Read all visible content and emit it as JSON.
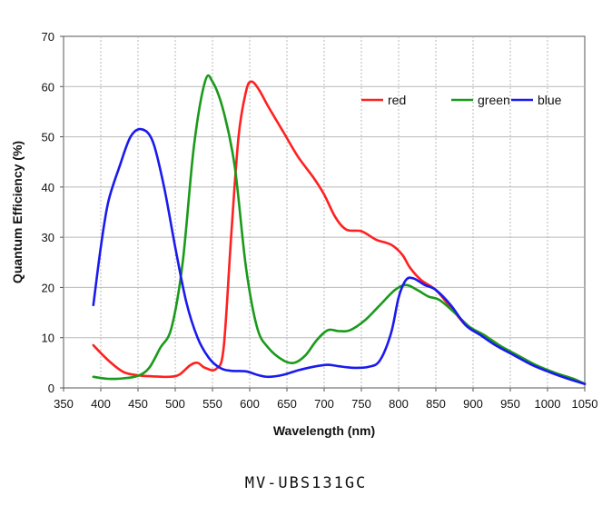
{
  "chart_data": {
    "type": "line",
    "xlabel": "Wavelength (nm)",
    "ylabel": "Quantum Efficiency (%)",
    "xlim": [
      350,
      1050
    ],
    "ylim": [
      0,
      70
    ],
    "x_ticks": [
      350,
      400,
      450,
      500,
      550,
      600,
      650,
      700,
      750,
      800,
      850,
      900,
      950,
      1000,
      1050
    ],
    "y_ticks": [
      0,
      10,
      20,
      30,
      40,
      50,
      60,
      70
    ],
    "grid": true,
    "legend_position": "top-right",
    "series": [
      {
        "name": "red",
        "color": "#ff2020",
        "points": [
          [
            390,
            8.5
          ],
          [
            410,
            5.5
          ],
          [
            430,
            3.2
          ],
          [
            450,
            2.5
          ],
          [
            470,
            2.3
          ],
          [
            490,
            2.2
          ],
          [
            505,
            2.6
          ],
          [
            520,
            4.5
          ],
          [
            530,
            5.0
          ],
          [
            540,
            4.0
          ],
          [
            555,
            3.8
          ],
          [
            565,
            8
          ],
          [
            575,
            30
          ],
          [
            585,
            50
          ],
          [
            595,
            59
          ],
          [
            602,
            61
          ],
          [
            612,
            59.5
          ],
          [
            625,
            56
          ],
          [
            645,
            51
          ],
          [
            665,
            46
          ],
          [
            685,
            42
          ],
          [
            700,
            38.5
          ],
          [
            715,
            34
          ],
          [
            730,
            31.5
          ],
          [
            750,
            31.2
          ],
          [
            770,
            29.5
          ],
          [
            790,
            28.5
          ],
          [
            805,
            26.5
          ],
          [
            815,
            24
          ],
          [
            830,
            21.5
          ],
          [
            850,
            19.5
          ],
          [
            870,
            16
          ],
          [
            890,
            12.5
          ],
          [
            905,
            11
          ],
          [
            925,
            9.5
          ],
          [
            950,
            7
          ],
          [
            975,
            5
          ],
          [
            1000,
            3.5
          ],
          [
            1025,
            2
          ],
          [
            1050,
            0.8
          ]
        ]
      },
      {
        "name": "green",
        "color": "#1a9a1a",
        "points": [
          [
            390,
            2.2
          ],
          [
            410,
            1.8
          ],
          [
            430,
            1.9
          ],
          [
            450,
            2.4
          ],
          [
            465,
            4
          ],
          [
            480,
            8
          ],
          [
            495,
            12
          ],
          [
            510,
            25
          ],
          [
            525,
            48
          ],
          [
            540,
            61
          ],
          [
            550,
            61
          ],
          [
            565,
            55
          ],
          [
            580,
            44
          ],
          [
            595,
            24
          ],
          [
            610,
            12
          ],
          [
            625,
            8
          ],
          [
            645,
            5.5
          ],
          [
            660,
            5
          ],
          [
            675,
            6.5
          ],
          [
            690,
            9.5
          ],
          [
            705,
            11.5
          ],
          [
            720,
            11.3
          ],
          [
            735,
            11.5
          ],
          [
            755,
            13.5
          ],
          [
            775,
            16.5
          ],
          [
            795,
            19.5
          ],
          [
            810,
            20.5
          ],
          [
            825,
            19.5
          ],
          [
            840,
            18.2
          ],
          [
            855,
            17.5
          ],
          [
            875,
            15
          ],
          [
            895,
            12.2
          ],
          [
            915,
            10.5
          ],
          [
            935,
            8.5
          ],
          [
            960,
            6.5
          ],
          [
            985,
            4.5
          ],
          [
            1010,
            3
          ],
          [
            1035,
            1.8
          ],
          [
            1050,
            0.8
          ]
        ]
      },
      {
        "name": "blue",
        "color": "#1a1aee",
        "points": [
          [
            390,
            16.5
          ],
          [
            400,
            28
          ],
          [
            410,
            37
          ],
          [
            425,
            44
          ],
          [
            440,
            50
          ],
          [
            455,
            51.5
          ],
          [
            470,
            49
          ],
          [
            485,
            40
          ],
          [
            500,
            28
          ],
          [
            515,
            17
          ],
          [
            530,
            10
          ],
          [
            545,
            6
          ],
          [
            560,
            4
          ],
          [
            575,
            3.4
          ],
          [
            595,
            3.3
          ],
          [
            610,
            2.6
          ],
          [
            625,
            2.2
          ],
          [
            645,
            2.6
          ],
          [
            665,
            3.5
          ],
          [
            685,
            4.2
          ],
          [
            705,
            4.6
          ],
          [
            720,
            4.3
          ],
          [
            740,
            4.0
          ],
          [
            760,
            4.2
          ],
          [
            775,
            5.5
          ],
          [
            790,
            11
          ],
          [
            800,
            18
          ],
          [
            810,
            21.5
          ],
          [
            820,
            21.8
          ],
          [
            835,
            20.5
          ],
          [
            850,
            19.5
          ],
          [
            870,
            16.5
          ],
          [
            890,
            12.5
          ],
          [
            910,
            10.5
          ],
          [
            930,
            8.5
          ],
          [
            955,
            6.5
          ],
          [
            980,
            4.5
          ],
          [
            1005,
            3
          ],
          [
            1030,
            1.7
          ],
          [
            1050,
            0.8
          ]
        ]
      }
    ]
  },
  "caption": "MV-UBS131GC"
}
